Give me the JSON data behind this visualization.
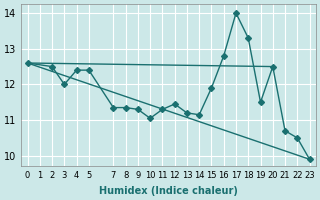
{
  "xlabel": "Humidex (Indice chaleur)",
  "ylabel": "",
  "bg_color": "#cce8e8",
  "grid_color": "#ffffff",
  "line_color": "#1a7070",
  "xlim": [
    -0.5,
    23.5
  ],
  "ylim": [
    9.7,
    14.25
  ],
  "yticks": [
    10,
    11,
    12,
    13,
    14
  ],
  "xticks": [
    0,
    1,
    2,
    3,
    4,
    5,
    7,
    8,
    9,
    10,
    11,
    12,
    13,
    14,
    15,
    16,
    17,
    18,
    19,
    20,
    21,
    22,
    23
  ],
  "line1_x": [
    0,
    2,
    3,
    4,
    5,
    7,
    8,
    9,
    10,
    11,
    12,
    13,
    14,
    15,
    16,
    17,
    18,
    19,
    20,
    21,
    22,
    23
  ],
  "line1_y": [
    12.6,
    12.5,
    12.0,
    12.4,
    12.4,
    11.35,
    11.35,
    11.3,
    11.05,
    11.3,
    11.45,
    11.2,
    11.15,
    11.9,
    12.8,
    14.0,
    13.3,
    11.5,
    12.5,
    10.7,
    10.5,
    9.9
  ],
  "line2_x": [
    0,
    20
  ],
  "line2_y": [
    12.6,
    12.5
  ],
  "line3_x": [
    0,
    23
  ],
  "line3_y": [
    12.6,
    9.9
  ]
}
